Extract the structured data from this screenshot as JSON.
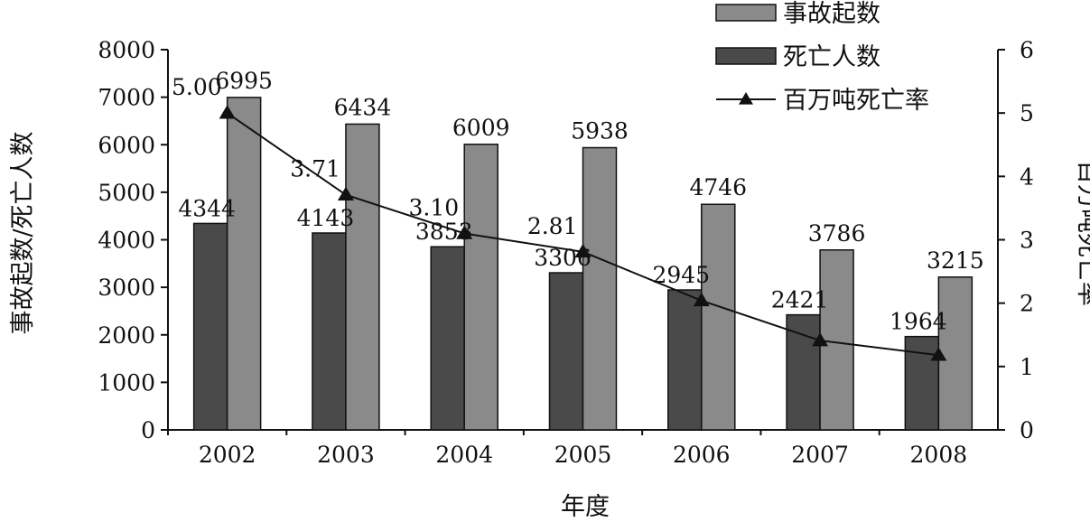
{
  "chart_data": {
    "type": "bar",
    "title": "",
    "xlabel": "年度",
    "ylabel_left": "事故起数/死亡人数",
    "ylabel_right": "百万吨死亡率",
    "categories": [
      "2002",
      "2003",
      "2004",
      "2005",
      "2006",
      "2007",
      "2008"
    ],
    "ylim_left": [
      0,
      8000
    ],
    "yticks_left": [
      "0",
      "1000",
      "2000",
      "3000",
      "4000",
      "5000",
      "6000",
      "7000",
      "8000"
    ],
    "ylim_right": [
      0,
      6
    ],
    "yticks_right": [
      "0",
      "1",
      "2",
      "3",
      "4",
      "5",
      "6"
    ],
    "grid": false,
    "legend_position": "top-right",
    "series": [
      {
        "name": "事故起数",
        "kind": "bar",
        "axis": "left",
        "color": "#8a8a8a",
        "values": [
          6995,
          6434,
          6009,
          5938,
          4746,
          3786,
          3215
        ],
        "labels": [
          "6995",
          "6434",
          "6009",
          "5938",
          "4746",
          "3786",
          "3215"
        ]
      },
      {
        "name": "死亡人数",
        "kind": "bar",
        "axis": "left",
        "color": "#4a4a4a",
        "values": [
          4344,
          4143,
          3853,
          3306,
          2945,
          2421,
          1964
        ],
        "labels": [
          "4344",
          "4143",
          "3853",
          "3306",
          "2945",
          "2421",
          "1964"
        ]
      },
      {
        "name": "百万吨死亡率",
        "kind": "line",
        "axis": "right",
        "color": "#111111",
        "marker": "triangle",
        "values": [
          5.0,
          3.71,
          3.1,
          2.81,
          2.04,
          1.41,
          1.18
        ],
        "labels": [
          "5.00",
          "3.71",
          "3.10",
          "2.81",
          "",
          "",
          ""
        ]
      }
    ]
  }
}
